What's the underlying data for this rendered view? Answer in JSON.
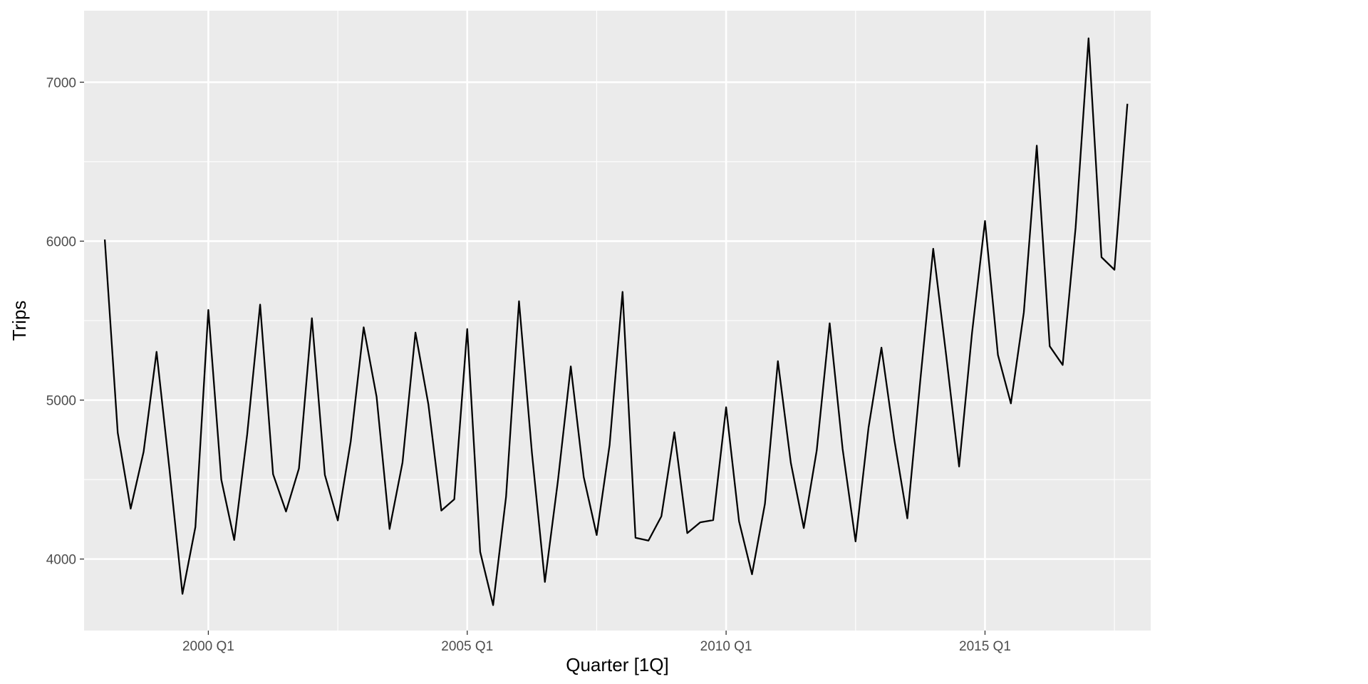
{
  "chart_data": {
    "type": "line",
    "xlabel": "Quarter [1Q]",
    "ylabel": "Trips",
    "x_ticks": [
      "2000 Q1",
      "2005 Q1",
      "2010 Q1",
      "2015 Q1"
    ],
    "y_ticks": [
      4000,
      5000,
      6000,
      7000
    ],
    "xlim": [
      1997.6,
      2018.2
    ],
    "ylim": [
      3550,
      7450
    ],
    "grid": true,
    "start_quarter": "1998 Q1",
    "series": [
      {
        "values": [
          6010,
          4795,
          4317,
          4675,
          5304,
          4562,
          3781,
          4201,
          5567,
          4500,
          4120,
          4784,
          5601,
          4534,
          4299,
          4570,
          5515,
          4530,
          4243,
          4740,
          5458,
          5020,
          4189,
          4607,
          5425,
          4973,
          4305,
          4376,
          5447,
          4045,
          3710,
          4392,
          5622,
          4667,
          3856,
          4488,
          5212,
          4516,
          4151,
          4718,
          5681,
          4134,
          4116,
          4269,
          4798,
          4163,
          4231,
          4245,
          4955,
          4237,
          3904,
          4348,
          5245,
          4605,
          4195,
          4683,
          5483,
          4693,
          4111,
          4825,
          5330,
          4747,
          4256,
          5123,
          5952,
          5282,
          4582,
          5424,
          6127,
          5284,
          4979,
          5552,
          6601,
          5339,
          5221,
          6085,
          7276,
          5899,
          5820,
          6864
        ]
      }
    ]
  },
  "colors": {
    "panel_background": "#ebebeb",
    "grid_major": "#ffffff",
    "line": "#000000"
  }
}
